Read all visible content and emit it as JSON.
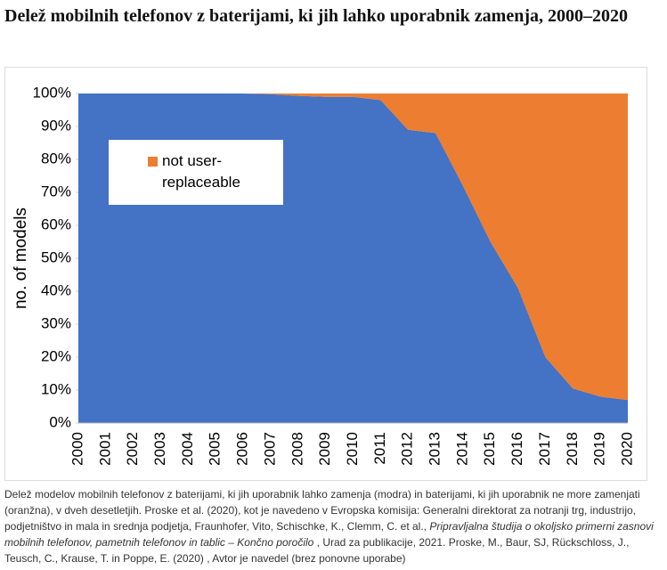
{
  "title": "Delež mobilnih telefonov z baterijami, ki jih lahko uporabnik zamenja, 2000–2020",
  "chart_data": {
    "type": "area",
    "y_label": "no. of models",
    "categories": [
      "2000",
      "2001",
      "2002",
      "2003",
      "2004",
      "2005",
      "2006",
      "2007",
      "2008",
      "2009",
      "2010",
      "2011",
      "2012",
      "2013",
      "2014",
      "2015",
      "2016",
      "2017",
      "2018",
      "2019",
      "2020"
    ],
    "series": [
      {
        "color": "#4472c4",
        "values": [
          100,
          100,
          100,
          100,
          100,
          100,
          100,
          99.8,
          99.3,
          99,
          99,
          98,
          89,
          88,
          72,
          55,
          41,
          20,
          10.5,
          8,
          7
        ]
      },
      {
        "name": "not user-replaceable",
        "color": "#ed7d31",
        "values": [
          0,
          0,
          0,
          0,
          0,
          0,
          0,
          0.2,
          0.7,
          1,
          1,
          2,
          11,
          12,
          28,
          45,
          59,
          80,
          89.5,
          92,
          93
        ]
      }
    ],
    "stacked": true,
    "ylim": [
      0,
      100
    ],
    "yticks": [
      {
        "value": 0,
        "label": "0%"
      },
      {
        "value": 10,
        "label": "10%"
      },
      {
        "value": 20,
        "label": "20%"
      },
      {
        "value": 30,
        "label": "30%"
      },
      {
        "value": 40,
        "label": "40%"
      },
      {
        "value": 50,
        "label": "50%"
      },
      {
        "value": 60,
        "label": "60%"
      },
      {
        "value": 70,
        "label": "70%"
      },
      {
        "value": 80,
        "label": "80%"
      },
      {
        "value": 90,
        "label": "90%"
      },
      {
        "value": 100,
        "label": "100%"
      }
    ]
  },
  "caption": [
    "Delež modelov mobilnih telefonov z baterijami, ki jih uporabnik lahko zamenja (modra) in baterijami, ki jih uporabnik ne more zamenjati (oranžna), v dveh desetletjih. Proske et al. (2020), kot je navedeno v Evropska komisija: Generalni direktorat za notranji trg, industrijo, podjetništvo in mala in srednja podjetja, Fraunhofer, Vito, Schischke, K., Clemm, C. et al., ",
    "Pripravljalna študija o okoljsko primerni zasnovi mobilnih telefonov, pametnih telefonov in tablic – Končno poročilo",
    " , Urad za publikacije, 2021. Proske, M., Baur, SJ, Rückschloss, J., Teusch, C., Krause, T. in Poppe, E. (2020) , Avtor je navedel (brez ponovne uporabe)"
  ]
}
